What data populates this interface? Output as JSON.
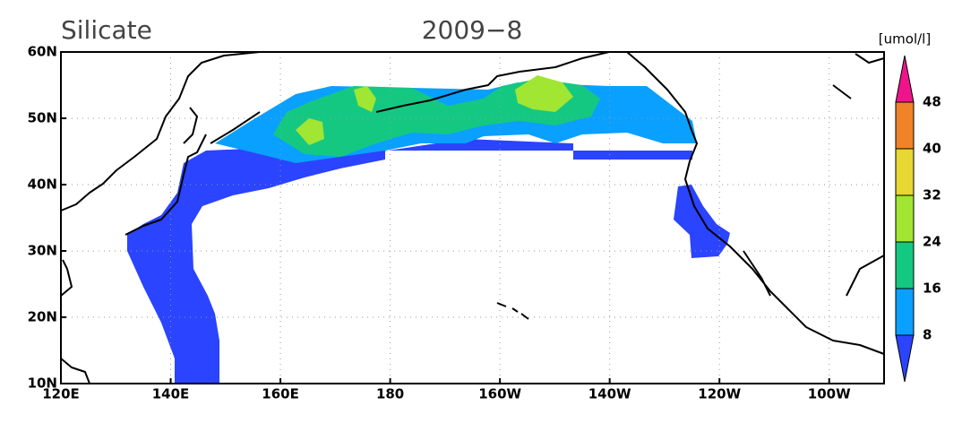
{
  "map": {
    "title": "Silicate",
    "date": "2009−8",
    "unit": "[umol/l]",
    "lonlim": [
      120,
      270
    ],
    "latlim": [
      10,
      60
    ],
    "lon_ticks": [
      {
        "value": 120,
        "label": "120E"
      },
      {
        "value": 140,
        "label": "140E"
      },
      {
        "value": 160,
        "label": "160E"
      },
      {
        "value": 180,
        "label": "180"
      },
      {
        "value": 200,
        "label": "160W"
      },
      {
        "value": 220,
        "label": "140W"
      },
      {
        "value": 240,
        "label": "120W"
      },
      {
        "value": 260,
        "label": "100W"
      }
    ],
    "lat_ticks": [
      {
        "value": 10,
        "label": "10N"
      },
      {
        "value": 20,
        "label": "20N"
      },
      {
        "value": 30,
        "label": "30N"
      },
      {
        "value": 40,
        "label": "40N"
      },
      {
        "value": 50,
        "label": "50N"
      },
      {
        "value": 60,
        "label": "60N"
      }
    ],
    "colorbar": {
      "levels": [
        8,
        16,
        24,
        32,
        40,
        48
      ],
      "colors": [
        "#2a44ff",
        "#0aa0ff",
        "#14c882",
        "#a0e632",
        "#e6d732",
        "#f08228",
        "#f0148c"
      ]
    }
  }
}
